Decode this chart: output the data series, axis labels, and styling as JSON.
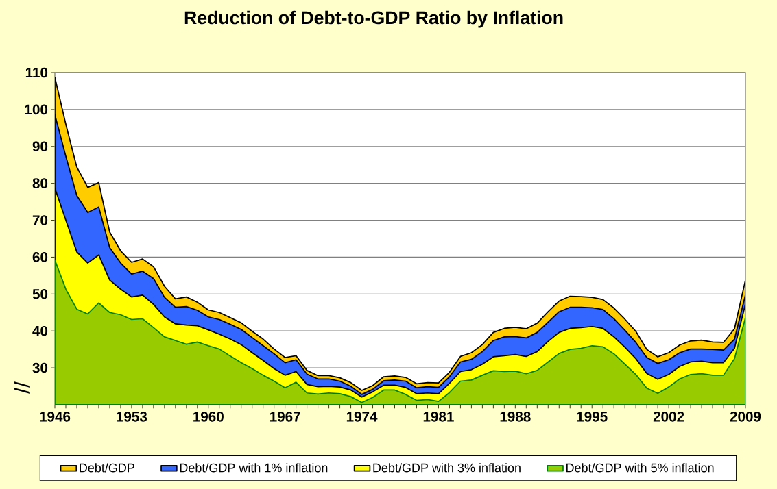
{
  "chart_data": {
    "type": "area",
    "title": "Reduction of Debt-to-GDP Ratio by Inflation",
    "x": [
      1946,
      1947,
      1948,
      1949,
      1950,
      1951,
      1952,
      1953,
      1954,
      1955,
      1956,
      1957,
      1958,
      1959,
      1960,
      1961,
      1962,
      1963,
      1964,
      1965,
      1966,
      1967,
      1968,
      1969,
      1970,
      1971,
      1972,
      1973,
      1974,
      1975,
      1976,
      1977,
      1978,
      1979,
      1980,
      1981,
      1982,
      1983,
      1984,
      1985,
      1986,
      1987,
      1988,
      1989,
      1990,
      1991,
      1992,
      1993,
      1994,
      1995,
      1996,
      1997,
      1998,
      1999,
      2000,
      2001,
      2002,
      2003,
      2004,
      2005,
      2006,
      2007,
      2008,
      2009
    ],
    "xlim": [
      1946,
      2009
    ],
    "xticks": [
      1946,
      1953,
      1960,
      1967,
      1974,
      1981,
      1988,
      1995,
      2002,
      2009
    ],
    "ylim": [
      20,
      110
    ],
    "yticks": [
      30,
      40,
      50,
      60,
      70,
      80,
      90,
      100,
      110
    ],
    "grid": "y",
    "legend": "bottom",
    "annotations": [
      "//"
    ],
    "series": [
      {
        "name": "Debt/GDP",
        "color": "#ffcc00",
        "values": [
          108.7,
          96.0,
          84.4,
          78.9,
          80.2,
          66.8,
          61.7,
          58.6,
          59.5,
          57.4,
          52.1,
          48.7,
          49.2,
          47.8,
          45.7,
          45.0,
          43.6,
          42.2,
          39.9,
          37.8,
          35.1,
          32.8,
          33.3,
          29.3,
          27.9,
          27.9,
          27.3,
          26.0,
          23.9,
          25.2,
          27.6,
          27.8,
          27.4,
          25.7,
          26.0,
          25.9,
          28.8,
          33.1,
          34.1,
          36.3,
          39.6,
          40.7,
          41.0,
          40.6,
          42.1,
          45.2,
          48.1,
          49.4,
          49.3,
          49.1,
          48.5,
          46.2,
          43.2,
          39.9,
          35.0,
          33.0,
          34.1,
          36.2,
          37.3,
          37.5,
          37.0,
          36.9,
          40.6,
          53.8
        ]
      },
      {
        "name": "Debt/GDP with 1% inflation",
        "color": "#3366ff",
        "values": [
          98.6,
          87.3,
          76.7,
          72.1,
          73.6,
          62.6,
          58.4,
          55.4,
          56.2,
          54.2,
          49.1,
          46.4,
          46.6,
          45.6,
          43.8,
          43.1,
          41.8,
          40.4,
          38.2,
          36.0,
          33.8,
          31.4,
          32.2,
          28.3,
          27.0,
          27.0,
          26.4,
          25.0,
          22.8,
          24.2,
          26.5,
          26.7,
          26.4,
          24.6,
          24.9,
          24.7,
          27.6,
          31.6,
          32.3,
          34.4,
          37.4,
          38.4,
          38.5,
          38.1,
          39.6,
          42.4,
          45.2,
          46.4,
          46.4,
          46.3,
          45.8,
          43.3,
          40.2,
          36.9,
          32.8,
          31.2,
          32.2,
          34.1,
          35.1,
          35.1,
          35.0,
          34.8,
          37.8,
          49.8
        ]
      },
      {
        "name": "Debt/GDP with 3% inflation",
        "color": "#ffff00",
        "values": [
          78.7,
          70.0,
          61.4,
          58.4,
          60.6,
          53.8,
          51.3,
          49.2,
          49.7,
          47.2,
          43.8,
          41.9,
          41.6,
          41.4,
          40.3,
          39.1,
          37.8,
          36.3,
          34.1,
          32.0,
          29.8,
          28.0,
          29.0,
          25.5,
          24.9,
          25.0,
          24.8,
          24.0,
          22.1,
          23.5,
          25.3,
          25.3,
          24.7,
          23.0,
          23.2,
          23.0,
          25.8,
          29.0,
          29.5,
          31.0,
          33.0,
          33.3,
          33.6,
          33.1,
          34.4,
          37.2,
          39.6,
          40.7,
          40.9,
          41.2,
          40.7,
          38.4,
          35.6,
          32.5,
          28.5,
          26.9,
          28.2,
          30.4,
          31.6,
          31.8,
          31.4,
          31.4,
          35.3,
          47.3
        ]
      },
      {
        "name": "Debt/GDP with 5% inflation",
        "color": "#99cc00",
        "values": [
          59.2,
          51.3,
          45.9,
          44.6,
          47.6,
          45.0,
          44.4,
          43.1,
          43.3,
          40.9,
          38.4,
          37.4,
          36.4,
          37.0,
          36.0,
          35.1,
          33.2,
          31.4,
          29.8,
          28.0,
          26.4,
          24.6,
          26.1,
          23.2,
          22.9,
          23.2,
          23.0,
          22.2,
          20.6,
          22.0,
          24.0,
          24.0,
          22.8,
          21.2,
          21.4,
          20.9,
          23.3,
          26.4,
          26.7,
          28.0,
          29.2,
          29.0,
          29.1,
          28.4,
          29.3,
          31.6,
          33.9,
          35.0,
          35.3,
          36.0,
          35.7,
          33.8,
          31.0,
          28.2,
          24.5,
          23.1,
          24.8,
          27.0,
          28.2,
          28.4,
          28.0,
          28.0,
          32.5,
          43.6
        ]
      }
    ]
  }
}
